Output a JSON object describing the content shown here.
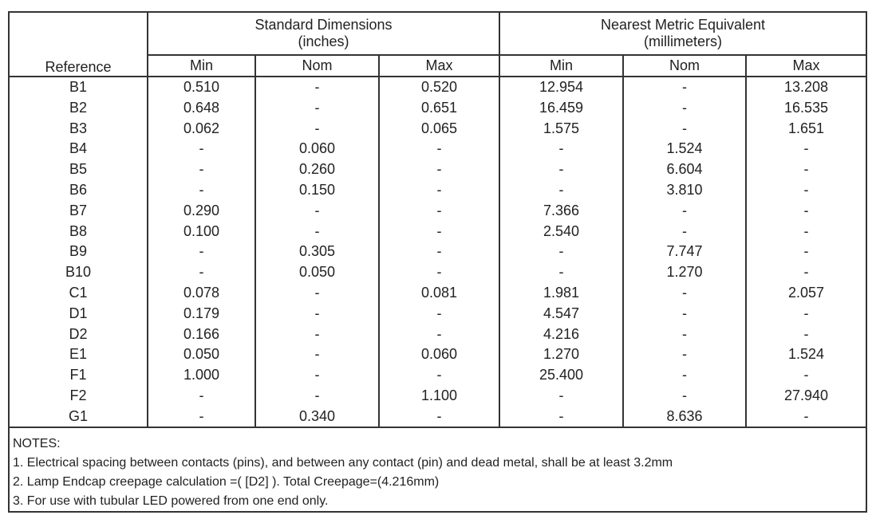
{
  "table": {
    "reference_header": "Reference",
    "groups": [
      {
        "title": "Standard Dimensions",
        "unit": "(inches)"
      },
      {
        "title": "Nearest Metric Equivalent",
        "unit": "(millimeters)"
      }
    ],
    "subheaders": [
      "Min",
      "Nom",
      "Max",
      "Min",
      "Nom",
      "Max"
    ],
    "rows": [
      [
        "B1",
        "0.510",
        "-",
        "0.520",
        "12.954",
        "-",
        "13.208"
      ],
      [
        "B2",
        "0.648",
        "-",
        "0.651",
        "16.459",
        "-",
        "16.535"
      ],
      [
        "B3",
        "0.062",
        "-",
        "0.065",
        "1.575",
        "-",
        "1.651"
      ],
      [
        "B4",
        "-",
        "0.060",
        "-",
        "-",
        "1.524",
        "-"
      ],
      [
        "B5",
        "-",
        "0.260",
        "-",
        "-",
        "6.604",
        "-"
      ],
      [
        "B6",
        "-",
        "0.150",
        "-",
        "-",
        "3.810",
        "-"
      ],
      [
        "B7",
        "0.290",
        "-",
        "-",
        "7.366",
        "-",
        "-"
      ],
      [
        "B8",
        "0.100",
        "-",
        "-",
        "2.540",
        "-",
        "-"
      ],
      [
        "B9",
        "-",
        "0.305",
        "-",
        "-",
        "7.747",
        "-"
      ],
      [
        "B10",
        "-",
        "0.050",
        "-",
        "-",
        "1.270",
        "-"
      ],
      [
        "C1",
        "0.078",
        "-",
        "0.081",
        "1.981",
        "-",
        "2.057"
      ],
      [
        "D1",
        "0.179",
        "-",
        "-",
        "4.547",
        "-",
        "-"
      ],
      [
        "D2",
        "0.166",
        "-",
        "-",
        "4.216",
        "-",
        "-"
      ],
      [
        "E1",
        "0.050",
        "-",
        "0.060",
        "1.270",
        "-",
        "1.524"
      ],
      [
        "F1",
        "1.000",
        "-",
        "-",
        "25.400",
        "-",
        "-"
      ],
      [
        "F2",
        "-",
        "-",
        "1.100",
        "-",
        "-",
        "27.940"
      ],
      [
        "G1",
        "-",
        "0.340",
        "-",
        "-",
        "8.636",
        "-"
      ]
    ]
  },
  "notes": {
    "title": "NOTES:",
    "items": [
      "1. Electrical spacing between contacts (pins), and between any contact (pin) and dead metal, shall be at least 3.2mm",
      "2. Lamp Endcap creepage calculation =( [D2] ). Total Creepage=(4.216mm)",
      "3. For use with tubular LED powered from one end only."
    ]
  }
}
